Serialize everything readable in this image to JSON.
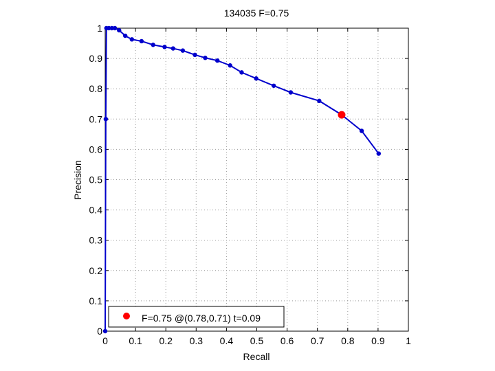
{
  "chart_data": {
    "type": "line",
    "title": "134035 F=0.75",
    "xlabel": "Recall",
    "ylabel": "Precision",
    "xlim": [
      0,
      1
    ],
    "ylim": [
      0,
      1
    ],
    "grid": true,
    "xticks": [
      0,
      0.1,
      0.2,
      0.3,
      0.4,
      0.5,
      0.6,
      0.7,
      0.8,
      0.9,
      1
    ],
    "xtick_labels": [
      "0",
      "0.1",
      "0.2",
      "0.3",
      "0.4",
      "0.5",
      "0.6",
      "0.7",
      "0.8",
      "0.9",
      "1"
    ],
    "yticks": [
      0,
      0.1,
      0.2,
      0.3,
      0.4,
      0.5,
      0.6,
      0.7,
      0.8,
      0.9,
      1
    ],
    "ytick_labels": [
      "0",
      "0.1",
      "0.2",
      "0.3",
      "0.4",
      "0.5",
      "0.6",
      "0.7",
      "0.8",
      "0.9",
      "1"
    ],
    "series": [
      {
        "color": "#0000cc",
        "x": [
          0.0,
          0.002,
          0.004,
          0.012,
          0.022,
          0.032,
          0.046,
          0.066,
          0.088,
          0.12,
          0.158,
          0.196,
          0.224,
          0.256,
          0.296,
          0.33,
          0.37,
          0.412,
          0.45,
          0.498,
          0.556,
          0.612,
          0.706,
          0.78,
          0.846,
          0.902
        ],
        "y": [
          0.0,
          0.7,
          1.0,
          1.0,
          1.0,
          1.0,
          0.993,
          0.975,
          0.963,
          0.957,
          0.945,
          0.938,
          0.933,
          0.926,
          0.912,
          0.902,
          0.893,
          0.877,
          0.854,
          0.834,
          0.81,
          0.788,
          0.76,
          0.714,
          0.661,
          0.586
        ]
      }
    ],
    "highlight": {
      "x": 0.78,
      "y": 0.714,
      "color": "#ff0000"
    },
    "legend": {
      "location": "bottom-left",
      "label": "F=0.75 @(0.78,0.71) t=0.09"
    }
  }
}
